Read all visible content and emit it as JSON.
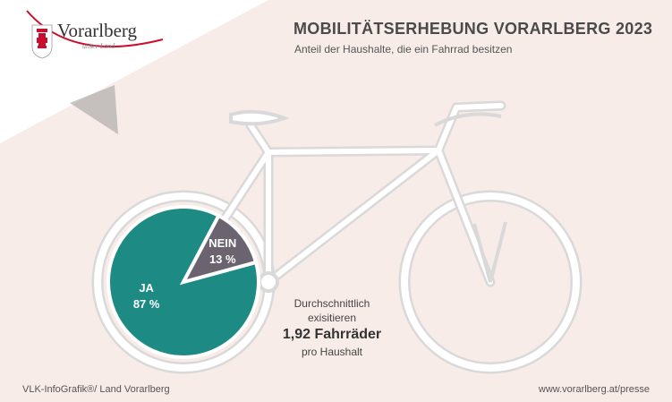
{
  "logo": {
    "name": "Vorarlberg",
    "tagline": "unser Land",
    "icon": "vorarlberg-coat-of-arms-icon"
  },
  "header": {
    "title": "MOBILITÄTSERHEBUNG VORARLBERG 2023",
    "subtitle": "Anteil der Haushalte, die ein Fahrrad besitzen"
  },
  "chart_data": {
    "type": "pie",
    "title": "MOBILITÄTSERHEBUNG VORARLBERG 2023",
    "subtitle": "Anteil der Haushalte, die ein Fahrrad besitzen",
    "labels": [
      "JA",
      "NEIN"
    ],
    "values": [
      87,
      13
    ],
    "value_labels": [
      "87 %",
      "13 %"
    ],
    "unit": "%",
    "colors": [
      "#1d8a83",
      "#6b6470"
    ]
  },
  "info": {
    "line1": "Durchschnittlich",
    "line2": "exisitieren",
    "highlight": "1,92 Fahrräder",
    "line3": "pro Haushalt"
  },
  "footer": {
    "left": "VLK-InfoGrafik®/ Land Vorarlberg",
    "right": "www.vorarlberg.at/presse"
  },
  "colors": {
    "background": "#f8ece8",
    "bike_outline": "#d9d9d9",
    "title_text": "#4a4a4a",
    "logo_red": "#c8102e"
  }
}
